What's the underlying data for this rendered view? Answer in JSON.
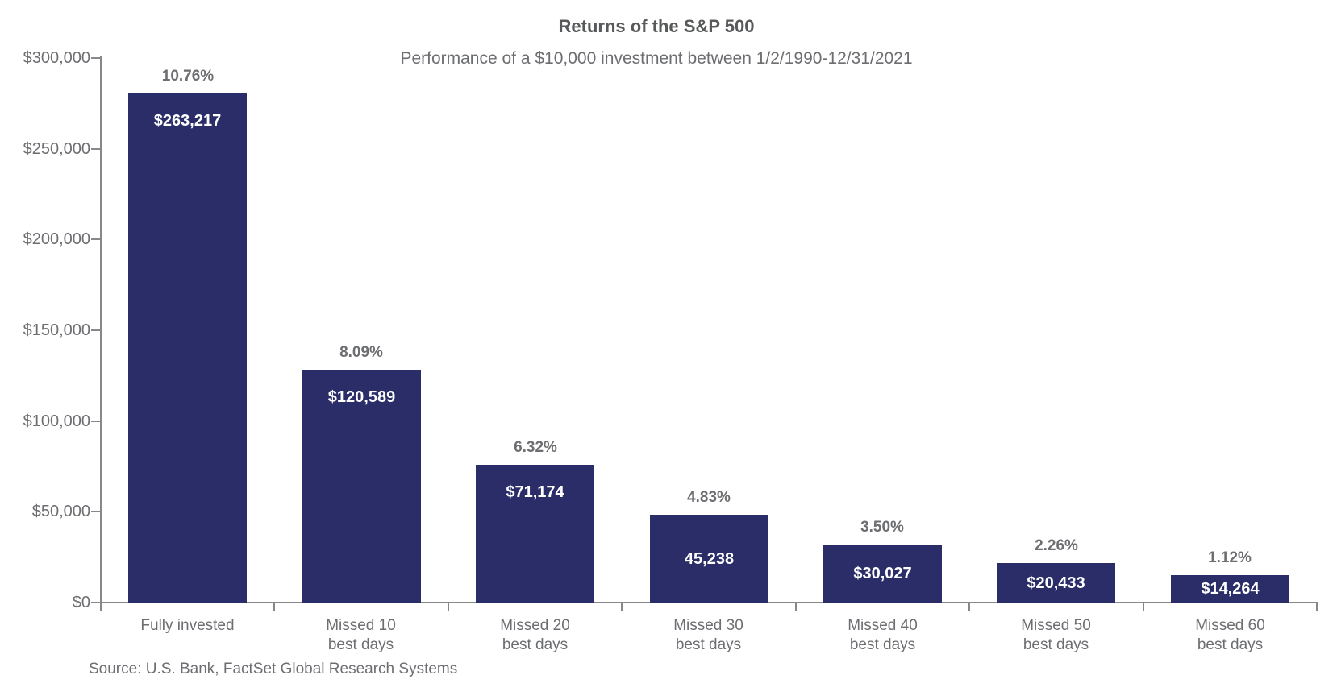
{
  "chart_data": {
    "type": "bar",
    "title": "Returns of the S&P 500",
    "subtitle": "Performance of a $10,000 investment between 1/2/1990-12/31/2021",
    "source": "Source: U.S. Bank, FactSet Global Research Systems",
    "categories": [
      "Fully invested",
      "Missed 10 best days",
      "Missed 20 best days",
      "Missed 30 best days",
      "Missed 40 best days",
      "Missed 50 best days",
      "Missed 60 best days"
    ],
    "values": [
      263217,
      120589,
      71174,
      45238,
      30027,
      20433,
      14264
    ],
    "bars": [
      {
        "label_lines": "Fully invested",
        "pct": "10.76%",
        "value": 263217,
        "value_label": "$263,217"
      },
      {
        "label_lines": "Missed 10\nbest days",
        "pct": "8.09%",
        "value": 120589,
        "value_label": "$120,589"
      },
      {
        "label_lines": "Missed 20\nbest days",
        "pct": "6.32%",
        "value": 71174,
        "value_label": "$71,174"
      },
      {
        "label_lines": "Missed 30\nbest days",
        "pct": "4.83%",
        "value": 45238,
        "value_label": "45,238"
      },
      {
        "label_lines": "Missed 40\nbest days",
        "pct": "3.50%",
        "value": 30027,
        "value_label": "$30,027"
      },
      {
        "label_lines": "Missed 50\nbest days",
        "pct": "2.26%",
        "value": 20433,
        "value_label": "$20,433"
      },
      {
        "label_lines": "Missed 60\nbest days",
        "pct": "1.12%",
        "value": 14264,
        "value_label": "$14,264"
      }
    ],
    "y_axis": {
      "label_format": "USD",
      "ticks": [
        {
          "value": 0,
          "label": "$0"
        },
        {
          "value": 50000,
          "label": "$50,000"
        },
        {
          "value": 100000,
          "label": "$100,000"
        },
        {
          "value": 150000,
          "label": "$150,000"
        },
        {
          "value": 200000,
          "label": "$200,000"
        },
        {
          "value": 250000,
          "label": "$250,000"
        },
        {
          "value": 300000,
          "label": "$300,000"
        }
      ]
    },
    "xlabel": "",
    "ylabel": "",
    "ylim": [
      0,
      300000
    ],
    "grid": false,
    "legend": "none",
    "colors": {
      "bar": "#2a2d68",
      "axis": "#87888a",
      "title_text": "#58595b",
      "label_text": "#6d6e71",
      "value_text": "#ffffff"
    }
  }
}
